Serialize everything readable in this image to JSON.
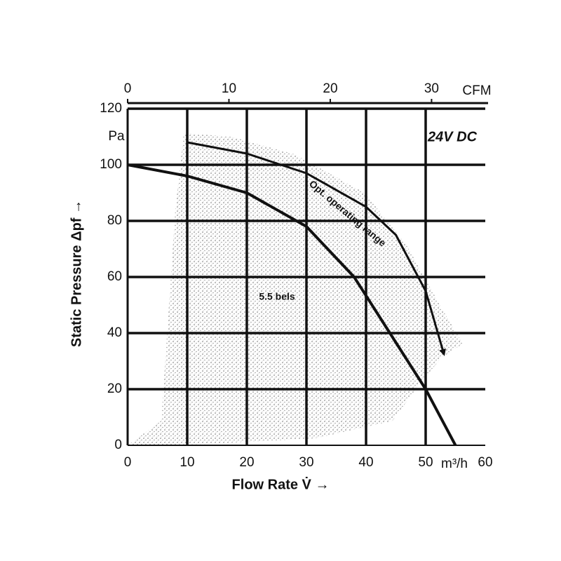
{
  "chart_data": {
    "type": "line",
    "title": "24V DC",
    "x_label": "Flow Rate V̇ →",
    "y_label": "Static Pressure  Δpf →",
    "x_unit": "m³/h",
    "y_unit": "Pa",
    "x2_label": "CFM",
    "xlim": [
      0,
      60
    ],
    "xticks": [
      0,
      10,
      20,
      30,
      40,
      50,
      60
    ],
    "x2lim": [
      0,
      35.3
    ],
    "x2ticks": [
      0,
      10,
      20,
      30
    ],
    "ylim": [
      0,
      120
    ],
    "yticks": [
      0,
      20,
      40,
      60,
      80,
      100,
      120
    ],
    "grid": true,
    "annotations": [
      "5.5 bels",
      "Opt. operating range"
    ],
    "series": [
      {
        "color": "#111111",
        "x": [
          0,
          10,
          20,
          30,
          38,
          44,
          50,
          55
        ],
        "values": [
          100,
          96,
          90,
          78,
          60,
          40,
          20,
          0
        ]
      },
      {
        "color": "#111111",
        "x": [
          10,
          20,
          30,
          40,
          45,
          50,
          53
        ],
        "values": [
          108,
          104,
          97,
          85,
          75,
          55,
          33
        ]
      }
    ]
  }
}
